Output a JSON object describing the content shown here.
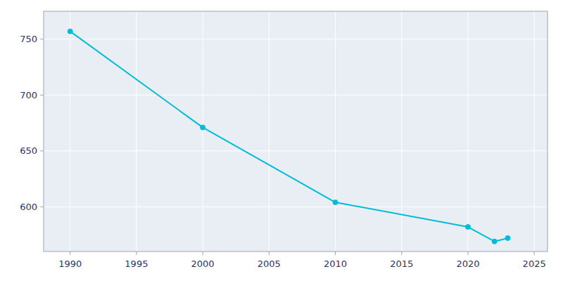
{
  "chart_data": {
    "type": "line",
    "x": [
      1990,
      2000,
      2010,
      2020,
      2022,
      2023
    ],
    "values": [
      757,
      671,
      604,
      582,
      569,
      572
    ],
    "color": "#00bcd4",
    "marker": "circle",
    "xlim": [
      1988,
      2026
    ],
    "ylim": [
      560,
      775
    ],
    "xticks": [
      1990,
      1995,
      2000,
      2005,
      2010,
      2015,
      2020,
      2025
    ],
    "yticks": [
      600,
      650,
      700,
      750
    ],
    "grid": true
  }
}
